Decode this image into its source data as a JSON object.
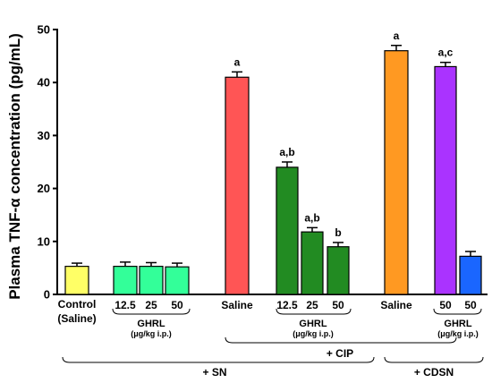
{
  "chart_data": {
    "type": "bar",
    "ylabel": "Plasma TNF-α concentration (pg/mL)",
    "ylim": [
      0,
      50
    ],
    "yticks": [
      0,
      10,
      20,
      30,
      40,
      50
    ],
    "grid": false,
    "bars": [
      {
        "label": "Control (Saline)",
        "value": 5.3,
        "error": 0.6,
        "color": "#ffff66",
        "sig": ""
      },
      {
        "label": "12.5",
        "value": 5.3,
        "error": 0.8,
        "color": "#33ff99",
        "sig": ""
      },
      {
        "label": "25",
        "value": 5.3,
        "error": 0.7,
        "color": "#33ff99",
        "sig": ""
      },
      {
        "label": "50",
        "value": 5.2,
        "error": 0.7,
        "color": "#33ff99",
        "sig": ""
      },
      {
        "label": "Saline",
        "value": 41.0,
        "error": 1.0,
        "color": "#ff5555",
        "sig": "a"
      },
      {
        "label": "12.5",
        "value": 24.0,
        "error": 1.0,
        "color": "#228b22",
        "sig": "a,b"
      },
      {
        "label": "25",
        "value": 11.8,
        "error": 0.8,
        "color": "#228b22",
        "sig": "a,b"
      },
      {
        "label": "50",
        "value": 9.0,
        "error": 0.8,
        "color": "#228b22",
        "sig": "b"
      },
      {
        "label": "Saline",
        "value": 46.0,
        "error": 1.0,
        "color": "#ff9922",
        "sig": "a"
      },
      {
        "label": "50",
        "value": 43.0,
        "error": 0.8,
        "color": "#aa33ff",
        "sig": "a,c"
      },
      {
        "label": "50",
        "value": 7.2,
        "error": 0.9,
        "color": "#1a66ff",
        "sig": ""
      }
    ],
    "groups": [
      {
        "name": "GHRL",
        "unit": "(μg/kg i.p.)"
      },
      {
        "name": "GHRL",
        "unit": "(μg/kg i.p.)"
      },
      {
        "name": "GHRL",
        "unit": "(μg/kg i.p.)"
      }
    ],
    "conditions": {
      "cip": "+ CIP",
      "sn": "+ SN",
      "cdsn": "+ CDSN"
    }
  }
}
